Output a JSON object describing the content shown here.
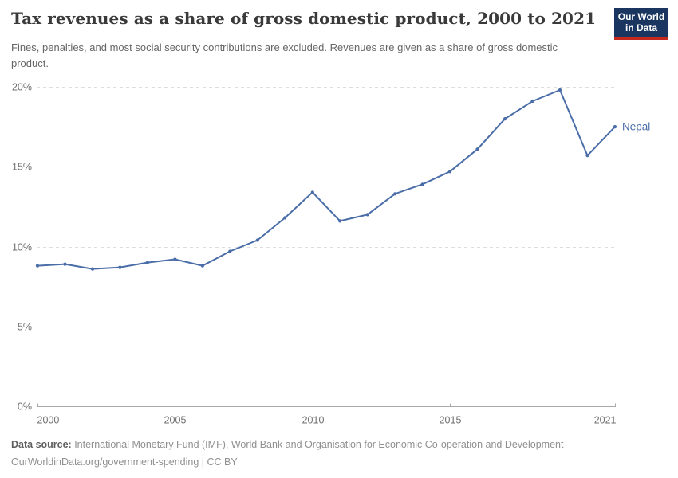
{
  "header": {
    "title": "Tax revenues as a share of gross domestic product, 2000 to 2021",
    "subtitle": "Fines, penalties, and most social security contributions are excluded. Revenues are given as a share of gross domestic product.",
    "logo": {
      "line1": "Our World",
      "line2": "in Data"
    }
  },
  "chart_data": {
    "type": "line",
    "title": "Tax revenues as a share of gross domestic product, 2000 to 2021",
    "x": [
      2000,
      2001,
      2002,
      2003,
      2004,
      2005,
      2006,
      2007,
      2008,
      2009,
      2010,
      2011,
      2012,
      2013,
      2014,
      2015,
      2016,
      2017,
      2018,
      2019,
      2020,
      2021
    ],
    "series": [
      {
        "name": "Nepal",
        "color": "#4a6da8",
        "values": [
          8.8,
          8.9,
          8.6,
          8.7,
          9.0,
          9.2,
          8.8,
          9.7,
          10.4,
          11.8,
          13.4,
          11.6,
          12.0,
          13.3,
          13.9,
          14.7,
          16.1,
          18.0,
          19.1,
          19.8,
          15.7,
          17.5
        ]
      }
    ],
    "xlabel": "",
    "ylabel": "",
    "xlim": [
      2000,
      2021
    ],
    "ylim": [
      0,
      20
    ],
    "x_ticks": [
      2000,
      2005,
      2010,
      2015,
      2021
    ],
    "y_ticks": [
      0,
      5,
      10,
      15,
      20
    ],
    "y_tick_suffix": "%",
    "grid": "horizontal-dashed",
    "legend_position": "end-of-line-label"
  },
  "footer": {
    "datasource_label": "Data source:",
    "datasource_text": " International Monetary Fund (IMF), World Bank and Organisation for Economic Co-operation and Development",
    "url": "OurWorldinData.org/government-spending",
    "separator": " | ",
    "license": "CC BY"
  },
  "colors": {
    "line": "#4a6da8",
    "gridline": "#dddddd",
    "axis": "#a8a8a8",
    "tick_label": "#707070",
    "logo_bg": "#1a3660",
    "logo_stripe": "#c5281c",
    "title": "#3a3a3a",
    "subtitle": "#666666"
  }
}
